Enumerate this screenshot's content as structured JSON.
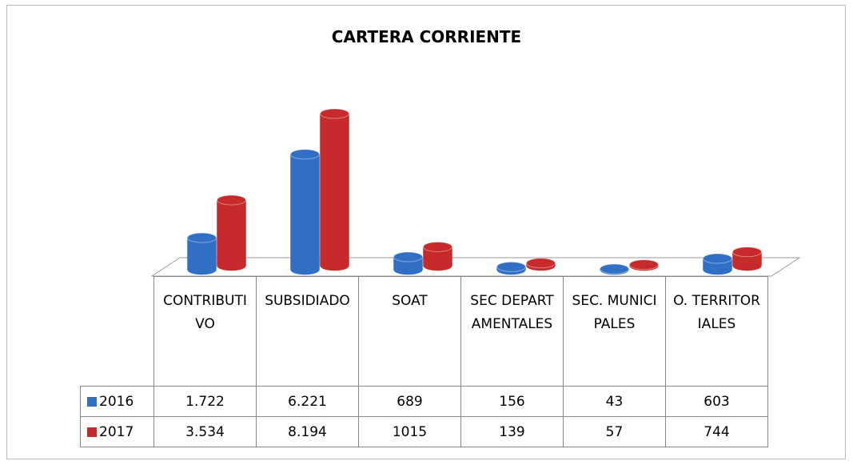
{
  "chart_data": {
    "type": "bar3d",
    "title": "CARTERA CORRIENTE",
    "categories": [
      "CONTRIBUTIVO",
      "SUBSIDIADO",
      "SOAT",
      "SEC DEPARTAMENTALES",
      "SEC. MUNICIPALES",
      "O. TERRITORIALES"
    ],
    "series": [
      {
        "name": "2016",
        "color": "#2f6fc6",
        "values": [
          1722,
          6221,
          689,
          156,
          43,
          603
        ],
        "value_labels": [
          "1.722",
          "6.221",
          "689",
          "156",
          "43",
          "603"
        ]
      },
      {
        "name": "2017",
        "color": "#c62a2a",
        "values": [
          3534,
          8194,
          1015,
          139,
          57,
          744
        ],
        "value_labels": [
          "3.534",
          "8.194",
          "1015",
          "139",
          "57",
          "744"
        ]
      }
    ]
  }
}
